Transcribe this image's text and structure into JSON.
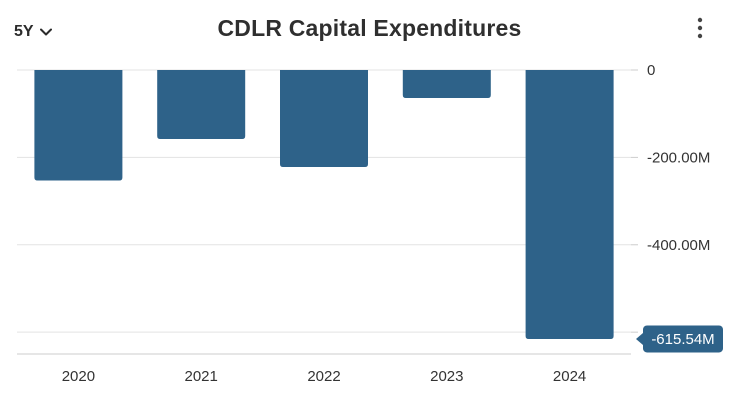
{
  "header": {
    "range_label": "5Y",
    "title": "CDLR Capital Expenditures"
  },
  "colors": {
    "bar": "#2e6289",
    "grid": "#e3e3e3",
    "axis": "#cccccc",
    "callout_bg": "#2e6289"
  },
  "chart_data": {
    "type": "bar",
    "title": "CDLR Capital Expenditures",
    "xlabel": "",
    "ylabel": "",
    "categories": [
      "2020",
      "2021",
      "2022",
      "2023",
      "2024"
    ],
    "values": [
      -253,
      -158,
      -222,
      -64,
      -615.54
    ],
    "ylim": [
      -650,
      0
    ],
    "y_ticks": [
      0,
      -200,
      -400
    ],
    "y_tick_labels": [
      "0",
      "-200.00M",
      "-400.00M"
    ],
    "grid": true,
    "y_axis_position": "right",
    "last_value_label": "-615.54M"
  }
}
